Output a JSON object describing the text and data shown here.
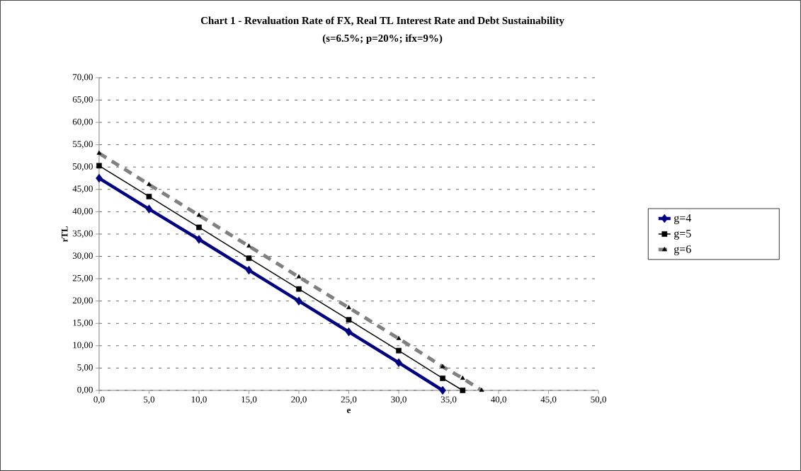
{
  "chart_data": {
    "type": "line",
    "title": "Chart 1 - Revaluation Rate of FX, Real TL Interest Rate and Debt Sustainability",
    "subtitle": "(s=6.5%; p=20%; ifx=9%)",
    "xlabel": "e",
    "ylabel": "rTL",
    "series": [
      {
        "name": "g=4",
        "color": "#000080",
        "marker": "diamond",
        "line_style": "solid",
        "x": [
          0,
          5,
          10,
          15,
          20,
          25,
          30,
          34.4
        ],
        "values": [
          47.5,
          40.6,
          33.8,
          26.9,
          20.0,
          13.1,
          6.2,
          0
        ]
      },
      {
        "name": "g=5",
        "color": "#000000",
        "marker": "square",
        "line_style": "solid",
        "x": [
          0,
          5,
          10,
          15,
          20,
          25,
          30,
          34.4,
          36.4
        ],
        "values": [
          50.3,
          43.4,
          36.5,
          29.6,
          22.7,
          15.8,
          8.9,
          2.7,
          0
        ]
      },
      {
        "name": "g=6",
        "color": "#808080",
        "marker": "triangle",
        "line_style": "dashed",
        "x": [
          0,
          5,
          10,
          15,
          20,
          25,
          30,
          34.4,
          36.4,
          38.3
        ],
        "values": [
          53.1,
          46.1,
          39.2,
          32.3,
          25.4,
          18.5,
          11.6,
          5.3,
          2.7,
          0
        ]
      }
    ],
    "xlim": [
      0,
      50
    ],
    "ylim": [
      0,
      70
    ],
    "xticks": [
      {
        "value": 0,
        "label": "0,0"
      },
      {
        "value": 5,
        "label": "5,0"
      },
      {
        "value": 10,
        "label": "10,0"
      },
      {
        "value": 15,
        "label": "15,0"
      },
      {
        "value": 20,
        "label": "20,0"
      },
      {
        "value": 25,
        "label": "25,0"
      },
      {
        "value": 30,
        "label": "30,0"
      },
      {
        "value": 35,
        "label": "35,0"
      },
      {
        "value": 40,
        "label": "40,0"
      },
      {
        "value": 45,
        "label": "45,0"
      },
      {
        "value": 50,
        "label": "50,0"
      }
    ],
    "yticks": [
      {
        "value": 0,
        "label": "0,00"
      },
      {
        "value": 5,
        "label": "5,00"
      },
      {
        "value": 10,
        "label": "10,00"
      },
      {
        "value": 15,
        "label": "15,00"
      },
      {
        "value": 20,
        "label": "20,00"
      },
      {
        "value": 25,
        "label": "25,00"
      },
      {
        "value": 30,
        "label": "30,00"
      },
      {
        "value": 35,
        "label": "35,00"
      },
      {
        "value": 40,
        "label": "40,00"
      },
      {
        "value": 45,
        "label": "45,00"
      },
      {
        "value": 50,
        "label": "50,00"
      },
      {
        "value": 55,
        "label": "55,00"
      },
      {
        "value": 60,
        "label": "60,00"
      },
      {
        "value": 65,
        "label": "65,00"
      },
      {
        "value": 70,
        "label": "70,00"
      }
    ],
    "grid": "y",
    "legend": "right"
  }
}
